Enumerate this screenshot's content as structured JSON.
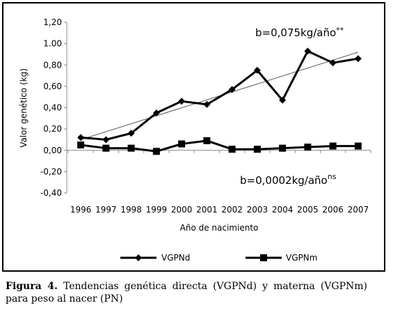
{
  "chart_data": {
    "type": "line",
    "title": "",
    "xlabel": "Año de nacimiento",
    "ylabel": "Valor genético (kg)",
    "x": [
      "1996",
      "1997",
      "1998",
      "1999",
      "2000",
      "2001",
      "2002",
      "2003",
      "2004",
      "2005",
      "2006",
      "2007"
    ],
    "ylim": [
      -0.4,
      1.2
    ],
    "yticks": [
      "1,20",
      "1.00",
      "0,80",
      "0,60",
      "0,40",
      "0,20",
      "0,00",
      "-0,20",
      "-0,40"
    ],
    "ytick_values": [
      1.2,
      1.0,
      0.8,
      0.6,
      0.4,
      0.2,
      0.0,
      -0.2,
      -0.4
    ],
    "grid": false,
    "legend_position": "bottom",
    "series": [
      {
        "name": "VGPNd",
        "marker": "diamond",
        "values": [
          0.12,
          0.1,
          0.16,
          0.35,
          0.46,
          0.43,
          0.57,
          0.75,
          0.47,
          0.93,
          0.82,
          0.86
        ]
      },
      {
        "name": "VGPNm",
        "marker": "square",
        "values": [
          0.05,
          0.02,
          0.02,
          -0.01,
          0.06,
          0.09,
          0.01,
          0.01,
          0.02,
          0.03,
          0.04,
          0.04
        ]
      }
    ],
    "trendline": {
      "series": "VGPNd",
      "from": [
        1996,
        0.1
      ],
      "to": [
        2007,
        0.92
      ]
    },
    "annotations": {
      "direct": {
        "text": "b=0,075kg/año",
        "sup": "**"
      },
      "maternal": {
        "text": "b=0,0002kg/año",
        "sup": "ns"
      }
    },
    "colors": {
      "line": "#000000",
      "trend": "#555555"
    }
  },
  "caption": {
    "label": "Figura 4.",
    "text": " Tendencias genética directa (VGPNd) y materna (VGPNm) para peso al nacer (PN)"
  }
}
